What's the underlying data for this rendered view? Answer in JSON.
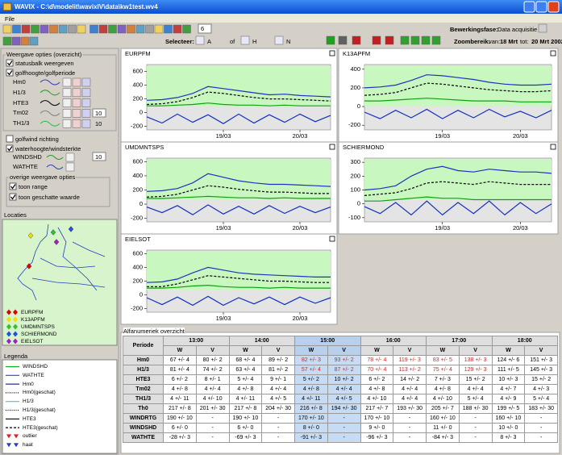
{
  "window": {
    "title": "WAVIX - C:\\d\\modelit\\wavixIV\\data\\kw1test.wv4",
    "menu": [
      "File"
    ]
  },
  "toolbar": {
    "spin": 6,
    "phase_label": "Bewerkingsfase:",
    "phase": "Data acquisitie",
    "select_label": "Selecteer:",
    "select_items": [
      "A",
      "of",
      "H",
      "N"
    ],
    "zoom_label": "Zoombereik:",
    "from_label": "van:",
    "from": "18 Mrt",
    "to_label": "tot:",
    "to": "20 Mrt 2002"
  },
  "options": {
    "title": "Weergave opties (overzicht)",
    "status": "statusbalk weergeven",
    "status_checked": true,
    "wave": "golfhoogte/golfperiode",
    "wave_checked": true,
    "wave_series": [
      "Hm0",
      "H1/3",
      "HTE3",
      "Tm02",
      "TH1/3"
    ],
    "wave_input": 10,
    "wave_value": 10,
    "wind_dir": "golfwind richting",
    "wind_dir_checked": false,
    "water": "waterhoogte/windsterkte",
    "water_checked": true,
    "water_series": [
      "WINDSHD",
      "WATHTE"
    ],
    "water_input": 10,
    "other_title": "overige weergave opties",
    "other": [
      "toon range",
      "toon geschatte waarde"
    ],
    "other_checked": [
      true,
      true
    ]
  },
  "locations": {
    "title": "Locaties",
    "items": [
      {
        "name": "EURPFM",
        "color": "#e00000"
      },
      {
        "name": "K13APFM",
        "color": "#f0e000"
      },
      {
        "name": "UMDMNTSPS",
        "color": "#30c030"
      },
      {
        "name": "SCHIERMOND",
        "color": "#2050e0"
      },
      {
        "name": "EIELSOT",
        "color": "#a020c0"
      }
    ]
  },
  "legend": {
    "title": "Legenda",
    "items": [
      "WINDSHD",
      "WATHTE",
      "Hm0",
      "Hm0(geschat)",
      "H1/3",
      "H1/3(geschat)",
      "HTE3",
      "HTE3(geschat)",
      "outlier",
      "haat"
    ]
  },
  "chart_data": [
    {
      "type": "line",
      "title": "EURPFM",
      "xlim": [
        0,
        48
      ],
      "ylim": [
        -250,
        700
      ],
      "yticks": [
        -200,
        0,
        200,
        400,
        600
      ],
      "xticks": [
        {
          "value": 20,
          "label": "19/03"
        },
        {
          "value": 40,
          "label": "20/03"
        }
      ],
      "x": [
        0,
        4,
        8,
        12,
        16,
        20,
        24,
        28,
        32,
        36,
        40,
        44,
        48
      ],
      "series": [
        {
          "color": "#2030c0",
          "dash": false,
          "values": [
            180,
            190,
            220,
            280,
            380,
            350,
            320,
            290,
            260,
            270,
            250,
            240,
            230
          ]
        },
        {
          "color": "#000000",
          "dash": true,
          "values": [
            120,
            130,
            160,
            220,
            300,
            280,
            250,
            220,
            200,
            200,
            190,
            180,
            170
          ]
        },
        {
          "color": "#10a010",
          "dash": false,
          "values": [
            100,
            100,
            110,
            120,
            140,
            120,
            110,
            110,
            100,
            110,
            100,
            100,
            100
          ]
        },
        {
          "color": "#1030c0",
          "dash": false,
          "values": [
            -60,
            -150,
            -20,
            -140,
            -30,
            -160,
            -20,
            -150,
            -30,
            -140,
            -20,
            -130,
            -40
          ]
        }
      ]
    },
    {
      "type": "line",
      "title": "K13APFM",
      "xlim": [
        0,
        48
      ],
      "ylim": [
        -250,
        450
      ],
      "yticks": [
        -200,
        0,
        200,
        400
      ],
      "xticks": [
        {
          "value": 20,
          "label": "19/03"
        },
        {
          "value": 40,
          "label": "20/03"
        }
      ],
      "x": [
        0,
        4,
        8,
        12,
        16,
        20,
        24,
        28,
        32,
        36,
        40,
        44,
        48
      ],
      "series": [
        {
          "color": "#2030c0",
          "dash": false,
          "values": [
            200,
            210,
            230,
            280,
            340,
            330,
            310,
            290,
            260,
            240,
            230,
            230,
            240
          ]
        },
        {
          "color": "#000000",
          "dash": true,
          "values": [
            120,
            130,
            150,
            200,
            250,
            240,
            220,
            200,
            180,
            170,
            160,
            160,
            170
          ]
        },
        {
          "color": "#10a010",
          "dash": false,
          "values": [
            60,
            60,
            70,
            80,
            90,
            80,
            70,
            60,
            60,
            60,
            50,
            50,
            50
          ]
        },
        {
          "color": "#1030c0",
          "dash": false,
          "values": [
            -60,
            -130,
            -40,
            -120,
            -30,
            -130,
            -40,
            -120,
            -30,
            -110,
            -50,
            -120,
            -40
          ]
        }
      ]
    },
    {
      "type": "line",
      "title": "UMDMNTSPS",
      "xlim": [
        0,
        48
      ],
      "ylim": [
        -250,
        650
      ],
      "yticks": [
        -200,
        0,
        200,
        400,
        600
      ],
      "xticks": [
        {
          "value": 20,
          "label": "19/03"
        },
        {
          "value": 40,
          "label": "20/03"
        }
      ],
      "x": [
        0,
        4,
        8,
        12,
        16,
        20,
        24,
        28,
        32,
        36,
        40,
        44,
        48
      ],
      "series": [
        {
          "color": "#2030c0",
          "dash": false,
          "values": [
            180,
            190,
            220,
            300,
            430,
            380,
            330,
            300,
            280,
            280,
            270,
            260,
            250
          ]
        },
        {
          "color": "#000000",
          "dash": true,
          "values": [
            100,
            110,
            140,
            200,
            260,
            240,
            210,
            190,
            170,
            170,
            160,
            150,
            150
          ]
        },
        {
          "color": "#10a010",
          "dash": false,
          "values": [
            80,
            80,
            90,
            100,
            110,
            100,
            90,
            90,
            80,
            90,
            80,
            80,
            80
          ]
        },
        {
          "color": "#1030c0",
          "dash": false,
          "values": [
            -40,
            -120,
            -20,
            -150,
            -10,
            -140,
            -30,
            -140,
            -20,
            -130,
            -30,
            -120,
            -40
          ]
        }
      ]
    },
    {
      "type": "line",
      "title": "SCHIERMOND",
      "xlim": [
        0,
        48
      ],
      "ylim": [
        -130,
        330
      ],
      "yticks": [
        -100,
        0,
        100,
        200,
        300
      ],
      "xticks": [
        {
          "value": 20,
          "label": "19/03"
        },
        {
          "value": 40,
          "label": "20/03"
        }
      ],
      "x": [
        0,
        4,
        8,
        12,
        16,
        20,
        24,
        28,
        32,
        36,
        40,
        44,
        48
      ],
      "series": [
        {
          "color": "#2030c0",
          "dash": false,
          "values": [
            100,
            110,
            130,
            200,
            250,
            270,
            240,
            230,
            250,
            240,
            230,
            230,
            220
          ]
        },
        {
          "color": "#000000",
          "dash": true,
          "values": [
            60,
            70,
            80,
            110,
            150,
            160,
            150,
            140,
            160,
            150,
            140,
            140,
            140
          ]
        },
        {
          "color": "#10a010",
          "dash": false,
          "values": [
            20,
            20,
            30,
            40,
            50,
            40,
            40,
            30,
            30,
            30,
            30,
            30,
            30
          ]
        },
        {
          "color": "#1030c0",
          "dash": false,
          "values": [
            -20,
            -70,
            10,
            -80,
            20,
            -80,
            10,
            -70,
            20,
            -80,
            10,
            -70,
            0
          ]
        }
      ]
    },
    {
      "type": "line",
      "title": "EIELSOT",
      "xlim": [
        0,
        48
      ],
      "ylim": [
        -250,
        650
      ],
      "yticks": [
        -200,
        0,
        200,
        400,
        600
      ],
      "xticks": [
        {
          "value": 20,
          "label": "19/03"
        },
        {
          "value": 40,
          "label": "20/03"
        }
      ],
      "x": [
        0,
        4,
        8,
        12,
        16,
        20,
        24,
        28,
        32,
        36,
        40,
        44,
        48
      ],
      "series": [
        {
          "color": "#2030c0",
          "dash": false,
          "values": [
            180,
            190,
            230,
            320,
            400,
            360,
            320,
            300,
            290,
            280,
            270,
            260,
            260
          ]
        },
        {
          "color": "#000000",
          "dash": true,
          "values": [
            120,
            120,
            160,
            220,
            280,
            260,
            240,
            220,
            200,
            200,
            190,
            180,
            180
          ]
        },
        {
          "color": "#10a010",
          "dash": false,
          "values": [
            100,
            100,
            110,
            130,
            140,
            120,
            110,
            110,
            100,
            110,
            100,
            100,
            100
          ]
        },
        {
          "color": "#1030c0",
          "dash": false,
          "values": [
            -40,
            -140,
            -30,
            -150,
            -20,
            -150,
            -40,
            -130,
            -30,
            -140,
            -30,
            -120,
            -40
          ]
        }
      ]
    }
  ],
  "table": {
    "title": "Alfanumeriek overzicht",
    "corner": "Periode",
    "periods": [
      "13:00",
      "14:00",
      "15:00",
      "16:00",
      "17:00",
      "18:00"
    ],
    "subheaders": [
      "W",
      "V"
    ],
    "selected_period": 2,
    "alert_rows": [
      0,
      1
    ],
    "alert_columns": [
      4,
      5,
      6,
      7,
      8,
      9
    ],
    "alert_color": "#e02020",
    "rows": [
      {
        "label": "Hm0",
        "cells": [
          "67 +/- 4",
          "80 +/- 2",
          "68 +/- 4",
          "89 +/- 2",
          "82 +/- 3",
          "93 +/- 2",
          "78 +/- 4",
          "119 +/- 3",
          "83 +/- 5",
          "138 +/- 3",
          "124 +/- 6",
          "151 +/- 3"
        ]
      },
      {
        "label": "H1/3",
        "cells": [
          "81 +/- 4",
          "74 +/- 2",
          "63 +/- 4",
          "81 +/- 2",
          "57 +/- 4",
          "87 +/- 2",
          "70 +/- 4",
          "113 +/- 2",
          "75 +/- 4",
          "129 +/- 3",
          "111 +/- 5",
          "145 +/- 3"
        ]
      },
      {
        "label": "HTE3",
        "cells": [
          "6 +/- 2",
          "8 +/- 1",
          "5 +/- 4",
          "9 +/- 1",
          "5 +/- 2",
          "10 +/- 2",
          "6 +/- 2",
          "14 +/- 2",
          "7 +/- 3",
          "15 +/- 2",
          "10 +/- 3",
          "15 +/- 2"
        ]
      },
      {
        "label": "Tm02",
        "cells": [
          "4 +/- 8",
          "4 +/- 4",
          "4 +/- 8",
          "4 +/- 4",
          "4 +/- 8",
          "4 +/- 4",
          "4 +/- 8",
          "4 +/- 4",
          "4 +/- 8",
          "4 +/- 4",
          "4 +/- 7",
          "4 +/- 3"
        ]
      },
      {
        "label": "TH1/3",
        "cells": [
          "4 +/- 11",
          "4 +/- 10",
          "4 +/- 11",
          "4 +/- 5",
          "4 +/- 11",
          "4 +/- 5",
          "4 +/- 10",
          "4 +/- 4",
          "4 +/- 10",
          "5 +/- 4",
          "4 +/- 9",
          "5 +/- 4"
        ]
      },
      {
        "label": "Th0",
        "cells": [
          "217 +/- 8",
          "201 +/- 30",
          "217 +/- 8",
          "204 +/- 30",
          "216 +/- 8",
          "194 +/- 30",
          "217 +/- 7",
          "193 +/- 30",
          "205 +/- 7",
          "188 +/- 30",
          "199 +/- 5",
          "183 +/- 30"
        ]
      },
      {
        "label": "WINDRTG",
        "cells": [
          "190 +/- 10",
          "-",
          "190 +/- 10",
          "-",
          "170 +/- 10",
          "-",
          "170 +/- 10",
          "-",
          "160 +/- 10",
          "-",
          "160 +/- 10",
          "-"
        ]
      },
      {
        "label": "WINDSHD",
        "cells": [
          "6 +/- 0",
          "-",
          "6 +/- 0",
          "-",
          "8 +/- 0",
          "-",
          "9 +/- 0",
          "-",
          "11 +/- 0",
          "-",
          "10 +/- 0",
          "-"
        ]
      },
      {
        "label": "WATHTE",
        "cells": [
          "-28 +/- 3",
          "-",
          "-69 +/- 3",
          "-",
          "-91 +/- 3",
          "-",
          "-96 +/- 3",
          "-",
          "-84 +/- 3",
          "-",
          "8 +/- 3",
          "-"
        ]
      }
    ]
  }
}
